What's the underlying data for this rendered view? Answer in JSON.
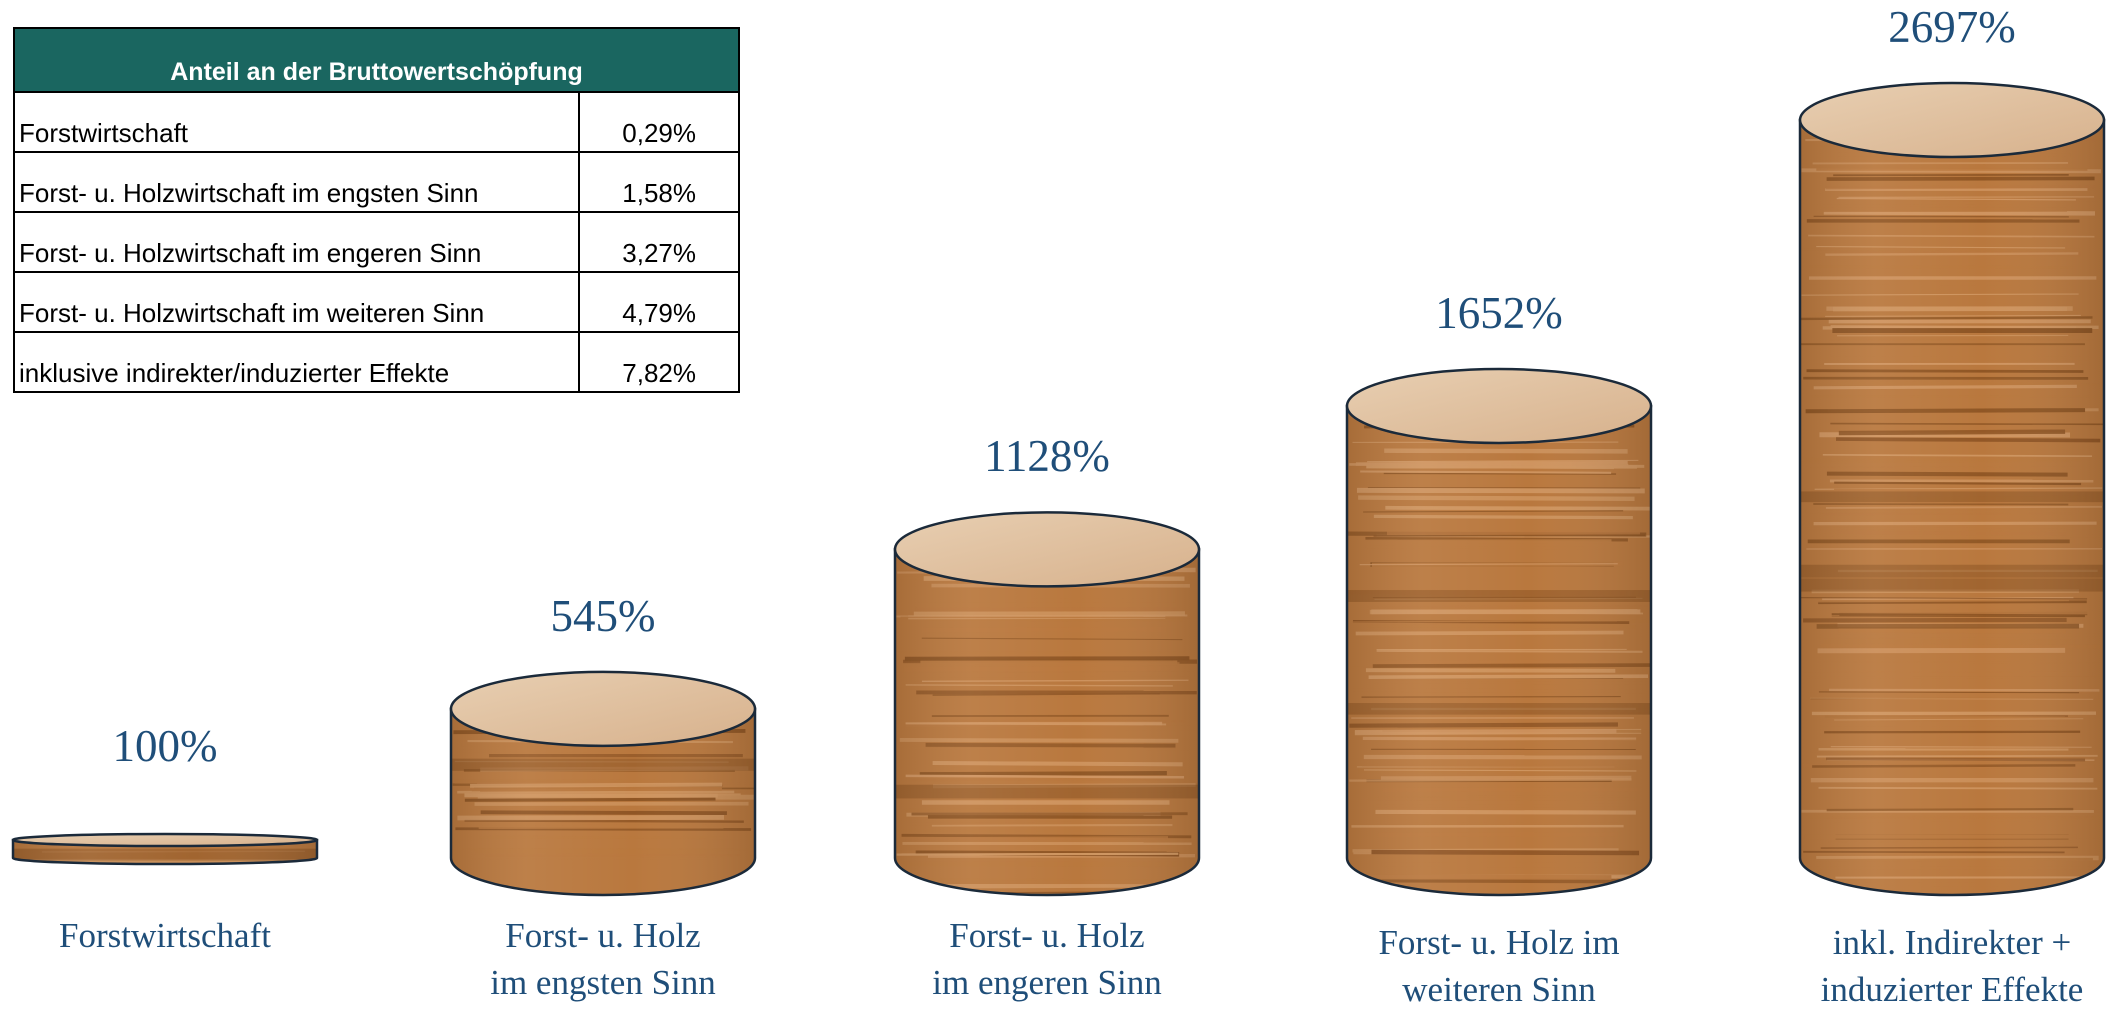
{
  "table": {
    "header": "Anteil an der Bruttowertschöpfung",
    "rows": [
      {
        "label": "Forstwirtschaft",
        "value": "0,29%"
      },
      {
        "label": "Forst- u. Holzwirtschaft im engsten Sinn",
        "value": "1,58%"
      },
      {
        "label": "Forst- u. Holzwirtschaft im engeren Sinn",
        "value": "3,27%"
      },
      {
        "label": "Forst- u. Holzwirtschaft im weiteren Sinn",
        "value": "4,79%"
      },
      {
        "label": "inklusive indirekter/induzierter Effekte",
        "value": "7,82%"
      }
    ]
  },
  "chart_data": {
    "type": "bar",
    "categories": [
      "Forstwirtschaft",
      "Forst- u. Holz im engsten Sinn",
      "Forst- u. Holz im engeren Sinn",
      "Forst- u. Holz im weiteren Sinn",
      "inkl. Indirekter + induzierter Effekte"
    ],
    "category_lines": [
      [
        "Forstwirtschaft"
      ],
      [
        "Forst- u. Holz",
        "im engsten Sinn"
      ],
      [
        "Forst- u. Holz",
        "im engeren Sinn"
      ],
      [
        "Forst- u. Holz im",
        "weiteren Sinn"
      ],
      [
        "inkl. Indirekter +",
        "induzierter Effekte"
      ]
    ],
    "values": [
      100,
      545,
      1128,
      1652,
      2697
    ],
    "value_labels": [
      "100%",
      "545%",
      "1128%",
      "1652%",
      "2697%"
    ],
    "bar_style": "cylinder",
    "colors": {
      "wood_light": "#cf9560",
      "wood_mid": "#b9783e",
      "wood_dark": "#8e5524",
      "top_light": "#e8cfb2",
      "top_dark": "#d7b18c",
      "label": "#1f4e79",
      "outline": "#1b2a3a"
    }
  }
}
